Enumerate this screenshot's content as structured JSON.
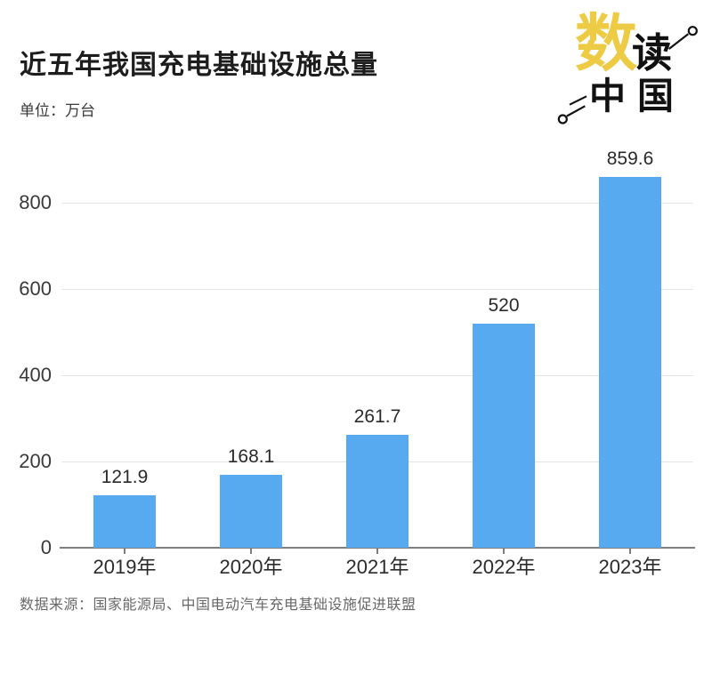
{
  "header": {
    "title": "近五年我国充电基础设施总量",
    "unit_label": "单位：万台"
  },
  "logo": {
    "char_primary": "数",
    "char_secondary": "读",
    "char_bottom": "中国",
    "accent_color": "#EECB45",
    "ink_color": "#111111"
  },
  "chart_data": {
    "type": "bar",
    "title": "近五年我国充电基础设施总量",
    "unit": "万台",
    "categories": [
      "2019年",
      "2020年",
      "2021年",
      "2022年",
      "2023年"
    ],
    "values": [
      121.9,
      168.1,
      261.7,
      520,
      859.6
    ],
    "value_labels": [
      "121.9",
      "168.1",
      "261.7",
      "520",
      "859.6"
    ],
    "xlabel": "",
    "ylabel": "",
    "ylim": [
      0,
      880
    ],
    "yticks": [
      0,
      200,
      400,
      600,
      800
    ],
    "grid": true,
    "legend_position": "none",
    "bar_color": "#57AAF0"
  },
  "footer": {
    "source": "数据来源：国家能源局、中国电动汽车充电基础设施促进联盟"
  }
}
